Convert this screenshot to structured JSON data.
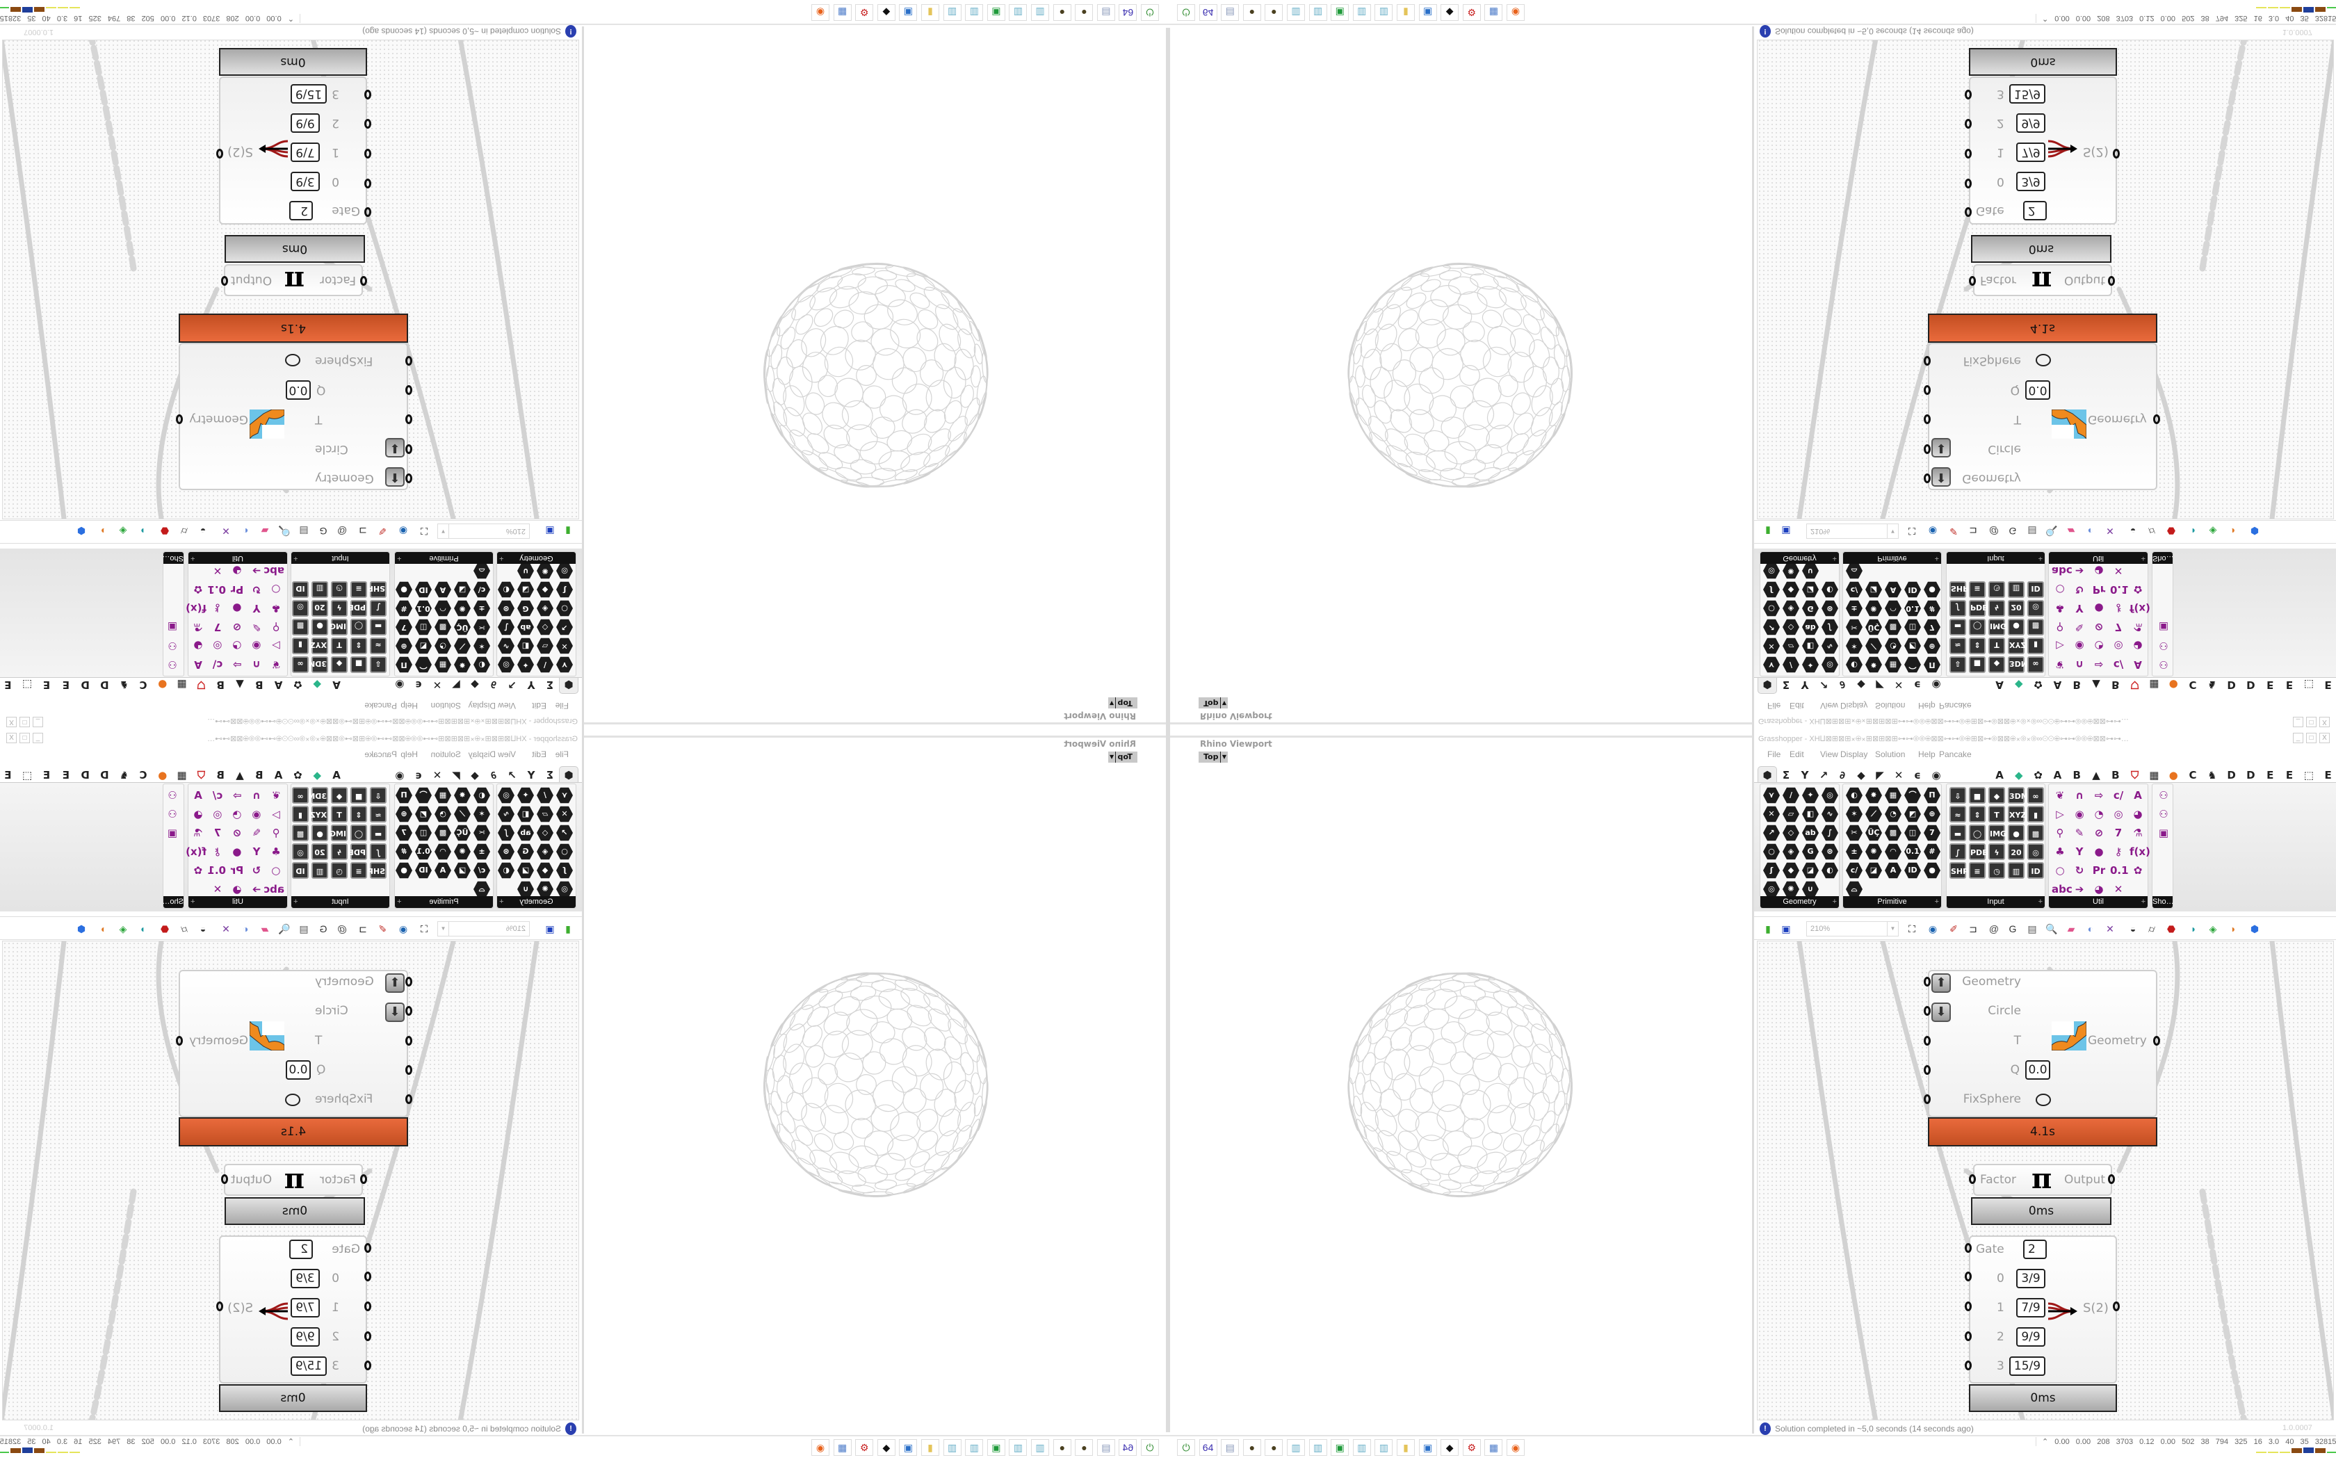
{
  "rhino": {
    "viewport_title": "Rhino Viewport",
    "view_label": "Top"
  },
  "grasshopper": {
    "title": "Grasshopper - XH⨿⊠⊞⊠⊞⨯⊕⨯⊞⊠⊞⊠⊞⊶⊶⊚⊚⊕⊠⊠⊶⊶⊚⊕⊞⊠⊶⊚⊠⊠⊕⨯⊚⨯⊚∞⊙⊙⊕⊶⊶⊚⊚⊕⊠⊠⊶⊶…",
    "window_controls": [
      "_",
      "□",
      "X"
    ],
    "menu": [
      "File",
      "Edit",
      "View",
      "Display",
      "Solution",
      "Help",
      "Pancake"
    ],
    "tabs_left": [
      {
        "name": "params-tab-icon",
        "glyph": "⬢"
      },
      {
        "name": "maths-tab-icon",
        "glyph": "Σ"
      },
      {
        "name": "sets-tab-icon",
        "glyph": "Y"
      },
      {
        "name": "vector-tab-icon",
        "glyph": "↗"
      },
      {
        "name": "curve-tab-icon",
        "glyph": "∂"
      },
      {
        "name": "surface-tab-icon",
        "glyph": "◆"
      },
      {
        "name": "mesh-tab-icon",
        "glyph": "◤"
      },
      {
        "name": "intersect-tab-icon",
        "glyph": "✕"
      },
      {
        "name": "transform-tab-icon",
        "glyph": "ϵ"
      },
      {
        "name": "display-tab-icon",
        "glyph": "◉"
      }
    ],
    "tabs_right": [
      {
        "name": "tab-a",
        "glyph": "A"
      },
      {
        "name": "crystal-tab-icon",
        "glyph": "◆",
        "color": "#2bb58a"
      },
      {
        "name": "flower-tab-icon",
        "glyph": "✿"
      },
      {
        "name": "tab-a2",
        "glyph": "A"
      },
      {
        "name": "tab-b",
        "glyph": "B"
      },
      {
        "name": "mountain-tab-icon",
        "glyph": "▲"
      },
      {
        "name": "tab-b2",
        "glyph": "B"
      },
      {
        "name": "shield-tab-icon",
        "glyph": "⛉",
        "color": "#c22"
      },
      {
        "name": "grid-tab-icon",
        "glyph": "▦"
      },
      {
        "name": "orange-circle-tab-icon",
        "glyph": "●",
        "color": "#e8731f"
      },
      {
        "name": "tab-c",
        "glyph": "C"
      },
      {
        "name": "rooster-tab-icon",
        "glyph": "♞"
      },
      {
        "name": "tab-d",
        "glyph": "D"
      },
      {
        "name": "tab-d2",
        "glyph": "D"
      },
      {
        "name": "tab-e",
        "glyph": "E"
      },
      {
        "name": "tab-e2",
        "glyph": "E"
      },
      {
        "name": "dotted-square-tab-icon",
        "glyph": "⬚"
      },
      {
        "name": "tab-e3",
        "glyph": "E"
      }
    ],
    "panels": [
      {
        "label": "Geometry",
        "kind": "hex",
        "cols": 4,
        "icons": [
          "vector",
          "point",
          "plane",
          "field",
          "null",
          "box",
          "brep",
          "circle-param",
          "line",
          "surface",
          "text",
          "curve",
          "circle",
          "cube",
          "geometry",
          "group",
          "arc",
          "mesh",
          "mesh-face",
          "twisted-box",
          "atom",
          "wireframe",
          "magnet"
        ],
        "glyphs": [
          "⋎",
          "∕",
          "✦",
          "◎",
          "✕",
          "▱",
          "◧",
          "∿",
          "↗",
          "◇",
          "ab",
          "∫",
          "○",
          "◈",
          "G",
          "⊛",
          "ʃ",
          "◆",
          "◪",
          "◐",
          "◎",
          "✺",
          "∪"
        ]
      },
      {
        "label": "Primitive",
        "kind": "hex",
        "cols": 5,
        "icons": [
          "boolean",
          "colour",
          "matrix",
          "domain",
          "domain2",
          "shader",
          "interval",
          "time",
          "data-path",
          "data",
          "fig",
          "ucs",
          "hatch",
          "file",
          "7-integer",
          "complex",
          "tree",
          "culture",
          "number",
          "line-param",
          "complex2",
          "file-path",
          "text",
          "guid",
          "sphere",
          "curve-shape"
        ],
        "glyphs": [
          "◐",
          "✸",
          "▦",
          "⌒",
          "Π",
          "✶",
          "⟋",
          "◔",
          "◩",
          "⊕",
          "✂",
          "ÜÇ",
          "▩",
          "◫",
          "7",
          "±",
          "✺",
          "◠",
          "0.1",
          "#",
          "c/",
          "◪",
          "A",
          "ID",
          "●",
          "⌓"
        ]
      },
      {
        "label": "Input",
        "kind": "sq",
        "cols": 5,
        "icons": [
          "import",
          "button",
          "gradient-cube",
          "3dm",
          "mm",
          "scribble",
          "pointer",
          "paint",
          "xyz",
          "toggle",
          "colour-swatch",
          "colour-wheel",
          "img",
          "dial",
          "checker",
          "graph",
          "pdb",
          "lightning",
          "calendar",
          "radar",
          "shp",
          "value-list",
          "clock",
          "rainbow",
          "id-tag"
        ],
        "glyphs": [
          "⇩",
          "■",
          "◆",
          "3DM",
          "∞",
          "≈",
          "⇕",
          "T",
          "XYZ",
          "▮",
          "▬",
          "◯",
          "IMG",
          "●",
          "▩",
          "∫",
          "PDB",
          "ϟ",
          "20",
          "◎",
          "SHP",
          "≡",
          "◷",
          "▥",
          "ID"
        ]
      },
      {
        "label": "Util",
        "kind": "col",
        "cols": 5,
        "icons": [
          "cherry",
          "horseshoe",
          "arrow",
          "c-script",
          "a-script",
          "play",
          "rec",
          "timer",
          "spiral",
          "eye",
          "axes",
          "pencil",
          "stopwatch",
          "seven",
          "flask",
          "tree",
          "shot",
          "egg",
          "key",
          "fx",
          "ring",
          "reload",
          "premiere",
          "0.1",
          "palette",
          "abc",
          "arrow-right",
          "gauge",
          "cross"
        ],
        "glyphs": [
          "❦",
          "∩",
          "⇨",
          "c/",
          "A",
          "▷",
          "◉",
          "◔",
          "◎",
          "◕",
          "⚲",
          "✎",
          "⊘",
          "7",
          "⚗",
          "♣",
          "Y",
          "●",
          "⚷",
          "f(x)",
          "○",
          "↻",
          "Pr",
          "0.1",
          "✿",
          "abc",
          "➔",
          "◕",
          "✕"
        ]
      },
      {
        "label": "Sho…",
        "kind": "col",
        "cols": 1,
        "icons": [
          "goggles",
          "goggles2",
          "presentation"
        ],
        "glyphs": [
          "⚇",
          "⚇",
          "▣"
        ]
      }
    ],
    "toolbar": {
      "zoom_value": "210%",
      "icons": [
        {
          "name": "open-file-icon",
          "glyph": "▮",
          "color": "#3cae2e"
        },
        {
          "name": "save-icon",
          "glyph": "▣",
          "color": "#1c3fbf"
        },
        {
          "name": "zoom-extents-icon",
          "glyph": "⛶",
          "color": "#111"
        },
        {
          "name": "eye-icon",
          "glyph": "◉",
          "color": "#1b63b0"
        },
        {
          "name": "sketch-icon",
          "glyph": "✐",
          "color": "#c0302a"
        },
        {
          "name": "bracket-icon",
          "glyph": "⊐",
          "color": "#222"
        },
        {
          "name": "email-icon",
          "glyph": "@",
          "color": "#444"
        },
        {
          "name": "gha-icon",
          "glyph": "G",
          "color": "#333"
        },
        {
          "name": "window-icon",
          "glyph": "▤",
          "color": "#555"
        },
        {
          "name": "search-icon",
          "glyph": "🔍",
          "color": "#333"
        },
        {
          "name": "package-icon",
          "glyph": "▰",
          "color": "#e0568d"
        },
        {
          "name": "bulb-icon",
          "glyph": "◐",
          "color": "#6a8edb"
        },
        {
          "name": "dna-icon",
          "glyph": "✕",
          "color": "#7a3ca0"
        },
        {
          "name": "bell-icon",
          "glyph": "◒",
          "color": "#333"
        },
        {
          "name": "cylinder-icon",
          "glyph": "⌭",
          "color": "#444"
        },
        {
          "name": "red-shape-icon",
          "glyph": "⬣",
          "color": "#c31b1b"
        },
        {
          "name": "teal-shape-icon",
          "glyph": "◗",
          "color": "#1d9aa0"
        },
        {
          "name": "green-shape-icon",
          "glyph": "◈",
          "color": "#2aa53a"
        },
        {
          "name": "orange-sphere-icon",
          "glyph": "◑",
          "color": "#e07a26"
        },
        {
          "name": "blue-hex-icon",
          "glyph": "⬢",
          "color": "#2b6fe0"
        }
      ]
    },
    "status": {
      "message": "Solution completed in ~5,0 seconds (14 seconds ago)",
      "version": "1.0.0007",
      "info_glyph": "!"
    }
  },
  "canvas": {
    "kangaroo": {
      "inputs": [
        "Geometry",
        "Circle",
        "T",
        "Q",
        "FixSphere"
      ],
      "q_value": "0.0",
      "output": "Geometry",
      "time": "4.1s",
      "time_color": "#d9582a"
    },
    "pi": {
      "input": "Factor",
      "symbol": "π",
      "output": "Output",
      "time": "0ms"
    },
    "gate": {
      "gate_label": "Gate",
      "gate_value": "2",
      "inputs": [
        {
          "label": "0",
          "value": "3/9"
        },
        {
          "label": "1",
          "value": "7/9"
        },
        {
          "label": "2",
          "value": "9/9"
        },
        {
          "label": "3",
          "value": "15/9"
        }
      ],
      "output": "S(2)",
      "time": "0ms"
    }
  },
  "taskbar": {
    "apps": [
      {
        "name": "power-app-icon",
        "glyph": "⏻",
        "color": "#2d8a2d"
      },
      {
        "name": "floppy-64-icon",
        "glyph": "64",
        "color": "#3b2fb0"
      },
      {
        "name": "scroll-document-icon",
        "glyph": "▤",
        "color": "#8897b8"
      },
      {
        "name": "dark-ball-icon",
        "glyph": "●",
        "color": "#4a4020"
      },
      {
        "name": "dark-ball-icon",
        "glyph": "●",
        "color": "#4a4020"
      },
      {
        "name": "notepad-icon",
        "glyph": "▥",
        "color": "#6ab0c8"
      },
      {
        "name": "notepad-icon",
        "glyph": "▥",
        "color": "#6ab0c8"
      },
      {
        "name": "monitor-icon",
        "glyph": "▣",
        "color": "#1e9a3a"
      },
      {
        "name": "notepad-icon",
        "glyph": "▥",
        "color": "#6ab0c8"
      },
      {
        "name": "notepad-icon",
        "glyph": "▥",
        "color": "#6ab0c8"
      },
      {
        "name": "folder-icon",
        "glyph": "▮",
        "color": "#e4c45a"
      },
      {
        "name": "presentation-icon",
        "glyph": "▣",
        "color": "#2a6fc8"
      },
      {
        "name": "rhino-icon",
        "glyph": "◆",
        "color": "#111"
      },
      {
        "name": "red-gear-icon",
        "glyph": "⚙",
        "color": "#c82020"
      },
      {
        "name": "calculator-icon",
        "glyph": "▦",
        "color": "#4a7ac8"
      },
      {
        "name": "firefox-icon",
        "glyph": "◉",
        "color": "#e8611a"
      }
    ],
    "stats": "⌃ 0.00 0.00 208 3703 0.12 0.00 502 38 794 325 16 3.0 40 35 32815082",
    "meter_colors": [
      "#e5e55a",
      "#e5e55a",
      "#e5e55a",
      "#8a4a12",
      "#1f3f9a",
      "#8a4a12",
      "#4ac84a",
      "#c81f1f"
    ]
  }
}
